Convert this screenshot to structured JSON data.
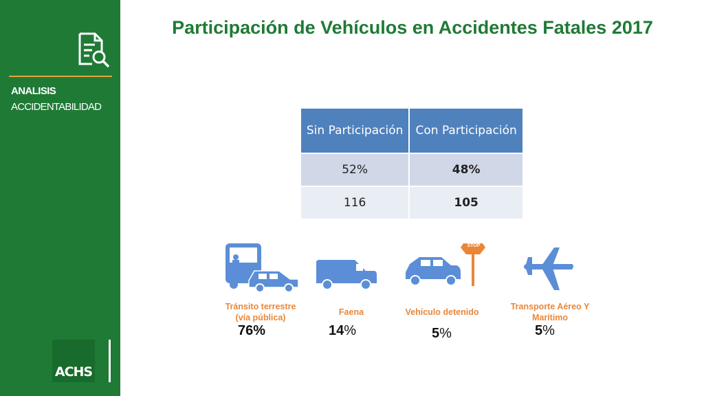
{
  "sidebar": {
    "section_title": "ANALISIS",
    "section_subtitle": "ACCIDENTABILIDAD",
    "logo_text": "ACHS",
    "icon": "document-search-icon"
  },
  "title": "Participación de Vehículos en Accidentes Fatales 2017",
  "table": {
    "headers": [
      "Sin Participación",
      "Con Participación"
    ],
    "rows": [
      [
        "52%",
        "48%"
      ],
      [
        "116",
        "105"
      ]
    ]
  },
  "categories": [
    {
      "label": "Tránsito terrestre (vía pública)",
      "percent_num": "76",
      "percent_sign": "%",
      "icon": "bus-car-icon"
    },
    {
      "label": "Faena",
      "percent_num": "14",
      "percent_sign": "%",
      "icon": "van-icon"
    },
    {
      "label": "Vehículo detenido",
      "percent_num": "5",
      "percent_sign": "%",
      "icon": "stopped-car-icon"
    },
    {
      "label": "Transporte Aéreo Y Marítimo",
      "percent_num": "5",
      "percent_sign": "%",
      "icon": "airplane-icon"
    }
  ],
  "stop_sign_text": "STOP",
  "colors": {
    "green": "#1f7a35",
    "orange": "#e8873a",
    "blue": "#5b8ed6",
    "header_blue": "#4f81bd"
  }
}
